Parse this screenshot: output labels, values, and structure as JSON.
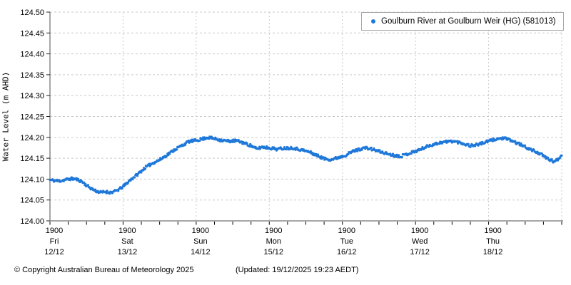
{
  "legend": {
    "label": "Goulburn River at Goulburn Weir (HG) (581013)"
  },
  "footer": {
    "copyright": "© Copyright Australian Bureau of Meteorology 2025",
    "updated": "(Updated: 19/12/2025 19:23 AEDT)"
  },
  "colors": {
    "series": "#1f78d9",
    "axis": "#8a8a8a",
    "grid": "#c9c9c9",
    "tick": "#222222",
    "background": "#ffffff"
  },
  "chart_data": {
    "type": "scatter",
    "title": "",
    "xlabel": "",
    "ylabel": "Water Level (m AHD)",
    "ylim": [
      124.0,
      124.5
    ],
    "y_tick_step": 0.05,
    "y_tick_labels": [
      "124.00",
      "124.05",
      "124.10",
      "124.15",
      "124.20",
      "124.25",
      "124.30",
      "124.35",
      "124.40",
      "124.45",
      "124.50"
    ],
    "x_range_days": 7,
    "x_minor_tick_interval_days": 0.25,
    "x_major_ticks": [
      {
        "t": 0,
        "time": "1900",
        "day": "Fri",
        "date": "12/12"
      },
      {
        "t": 1,
        "time": "1900",
        "day": "Sat",
        "date": "13/12"
      },
      {
        "t": 2,
        "time": "1900",
        "day": "Sun",
        "date": "14/12"
      },
      {
        "t": 3,
        "time": "1900",
        "day": "Mon",
        "date": "15/12"
      },
      {
        "t": 4,
        "time": "1900",
        "day": "Tue",
        "date": "16/12"
      },
      {
        "t": 5,
        "time": "1900",
        "day": "Wed",
        "date": "17/12"
      },
      {
        "t": 6,
        "time": "1900",
        "day": "Thu",
        "date": "18/12"
      }
    ],
    "grid": true,
    "legend_position": "top-right",
    "series": [
      {
        "name": "Goulburn River at Goulburn Weir (HG) (581013)",
        "color": "#1f78d9",
        "marker": "circle",
        "points": [
          [
            0.0,
            124.098
          ],
          [
            0.08,
            124.096
          ],
          [
            0.15,
            124.096
          ],
          [
            0.22,
            124.099
          ],
          [
            0.3,
            124.101
          ],
          [
            0.36,
            124.1
          ],
          [
            0.44,
            124.094
          ],
          [
            0.5,
            124.085
          ],
          [
            0.57,
            124.077
          ],
          [
            0.64,
            124.071
          ],
          [
            0.7,
            124.068
          ],
          [
            0.76,
            124.07
          ],
          [
            0.82,
            124.068
          ],
          [
            0.88,
            124.07
          ],
          [
            0.94,
            124.075
          ],
          [
            1.0,
            124.082
          ],
          [
            1.1,
            124.098
          ],
          [
            1.2,
            124.112
          ],
          [
            1.3,
            124.127
          ],
          [
            1.4,
            124.138
          ],
          [
            1.5,
            124.146
          ],
          [
            1.6,
            124.158
          ],
          [
            1.7,
            124.17
          ],
          [
            1.8,
            124.18
          ],
          [
            1.9,
            124.19
          ],
          [
            2.0,
            124.193
          ],
          [
            2.1,
            124.197
          ],
          [
            2.15,
            124.2
          ],
          [
            2.25,
            124.197
          ],
          [
            2.35,
            124.193
          ],
          [
            2.45,
            124.191
          ],
          [
            2.55,
            124.192
          ],
          [
            2.65,
            124.187
          ],
          [
            2.75,
            124.18
          ],
          [
            2.83,
            124.172
          ],
          [
            2.9,
            124.177
          ],
          [
            3.0,
            124.175
          ],
          [
            3.1,
            124.172
          ],
          [
            3.2,
            124.174
          ],
          [
            3.32,
            124.175
          ],
          [
            3.42,
            124.171
          ],
          [
            3.55,
            124.165
          ],
          [
            3.65,
            124.157
          ],
          [
            3.75,
            124.149
          ],
          [
            3.85,
            124.147
          ],
          [
            3.95,
            124.152
          ],
          [
            4.05,
            124.158
          ],
          [
            4.15,
            124.167
          ],
          [
            4.3,
            124.175
          ],
          [
            4.4,
            124.172
          ],
          [
            4.55,
            124.164
          ],
          [
            4.7,
            124.157
          ],
          [
            4.8,
            124.155
          ],
          [
            4.9,
            124.161
          ],
          [
            5.05,
            124.17
          ],
          [
            5.2,
            124.181
          ],
          [
            5.35,
            124.188
          ],
          [
            5.5,
            124.191
          ],
          [
            5.6,
            124.188
          ],
          [
            5.75,
            124.18
          ],
          [
            5.88,
            124.184
          ],
          [
            6.0,
            124.191
          ],
          [
            6.1,
            124.196
          ],
          [
            6.2,
            124.198
          ],
          [
            6.3,
            124.193
          ],
          [
            6.42,
            124.184
          ],
          [
            6.55,
            124.173
          ],
          [
            6.68,
            124.163
          ],
          [
            6.8,
            124.15
          ],
          [
            6.9,
            124.141
          ],
          [
            6.96,
            124.15
          ],
          [
            7.0,
            124.157
          ]
        ]
      }
    ],
    "render": {
      "samples": 780,
      "noise_amplitude_m": 0.0033,
      "seed": 11
    }
  }
}
